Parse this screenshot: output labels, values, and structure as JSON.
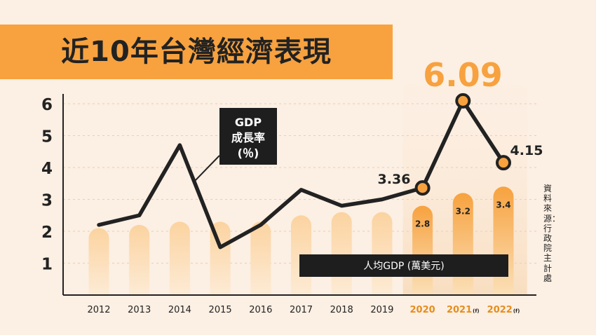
{
  "title": "近10年台灣經濟表現",
  "source": "資料來源：行政院主計處",
  "chart_data": {
    "type": "bar+line",
    "categories": [
      "2012",
      "2013",
      "2014",
      "2015",
      "2016",
      "2017",
      "2018",
      "2019",
      "2020",
      "2021",
      "2022"
    ],
    "category_suffix": [
      "",
      "",
      "",
      "",
      "",
      "",
      "",
      "",
      "",
      "(f)",
      "(f)"
    ],
    "highlight_from_index": 8,
    "yticks": [
      "1",
      "2",
      "3",
      "4",
      "5",
      "6"
    ],
    "ylim": [
      0,
      6.4
    ],
    "line_series": {
      "label": "GDP\n成長率\n(％)",
      "values": [
        2.2,
        2.5,
        4.7,
        1.5,
        2.2,
        3.3,
        2.8,
        3.0,
        3.36,
        6.09,
        4.15
      ],
      "labels": {
        "8": "3.36",
        "9": "6.09",
        "10": "4.15"
      }
    },
    "bar_series": {
      "label": "人均GDP (萬美元)",
      "values": [
        2.1,
        2.2,
        2.3,
        2.3,
        2.3,
        2.5,
        2.6,
        2.6,
        2.8,
        3.2,
        3.4
      ],
      "labels": {
        "8": "2.8",
        "9": "3.2",
        "10": "3.4"
      }
    },
    "colors": {
      "line": "#222222",
      "point_fill": "#f7a23f",
      "bar_light": "#fbd9a8",
      "bar_highlight": "#f7a23f",
      "bar_highlight_bottom": "#fbe0b8",
      "peak_label": "#f7a23f",
      "highlight_year": "#e58e1d"
    }
  }
}
